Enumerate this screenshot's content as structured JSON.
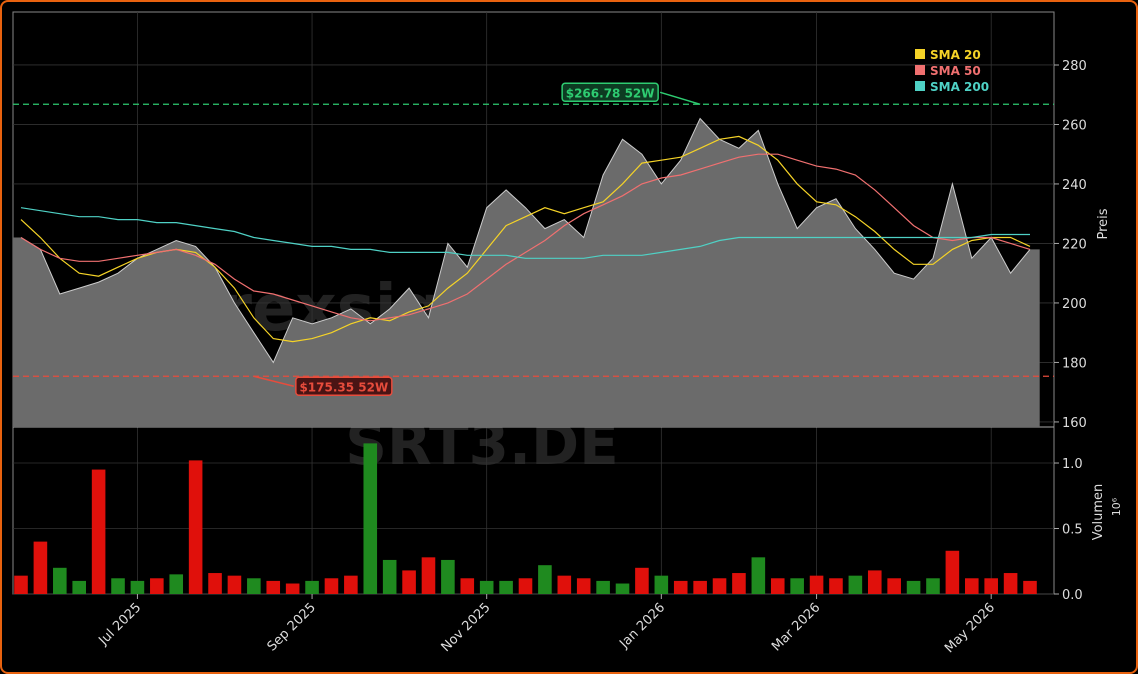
{
  "chart_data": {
    "type": "stock",
    "watermark": "forexsignale.trade",
    "symbol": "SRT3.DE",
    "y_label": "Preis",
    "y2_label": "Volumen",
    "y2_offset_label": "10⁶",
    "categories": [
      null,
      null,
      null,
      null,
      null,
      null,
      "Jul 2025",
      null,
      null,
      null,
      null,
      null,
      null,
      null,
      null,
      "Sep 2025",
      null,
      null,
      null,
      null,
      null,
      null,
      null,
      null,
      "Nov 2025",
      null,
      null,
      null,
      null,
      null,
      null,
      null,
      null,
      "Jan 2026",
      null,
      null,
      null,
      null,
      null,
      null,
      null,
      "Mar 2026",
      null,
      null,
      null,
      null,
      null,
      null,
      null,
      null,
      "May 2026",
      null,
      null
    ],
    "series": [
      {
        "name": "Close",
        "color": "#6b6b6b",
        "values": [
          222,
          218,
          203,
          205,
          207,
          210,
          215,
          218,
          221,
          219,
          212,
          200,
          190,
          180,
          195,
          193,
          195,
          198,
          193,
          198,
          205,
          195,
          220,
          212,
          232,
          238,
          232,
          225,
          228,
          222,
          243,
          255,
          250,
          240,
          248,
          262,
          255,
          252,
          258,
          240,
          225,
          232,
          235,
          225,
          218,
          210,
          208,
          215,
          240,
          215,
          222,
          210,
          218
        ]
      },
      {
        "name": "SMA 20",
        "color": "#f5d327",
        "values": [
          228,
          222,
          215,
          210,
          209,
          212,
          215,
          217,
          218,
          217,
          212,
          205,
          195,
          188,
          187,
          188,
          190,
          193,
          195,
          194,
          197,
          199,
          205,
          210,
          218,
          226,
          229,
          232,
          230,
          232,
          234,
          240,
          247,
          248,
          249,
          252,
          255,
          256,
          253,
          248,
          240,
          234,
          233,
          229,
          224,
          218,
          213,
          213,
          218,
          221,
          222,
          222,
          219
        ]
      },
      {
        "name": "SMA 50",
        "color": "#f07070",
        "values": [
          222,
          218,
          215,
          214,
          214,
          215,
          216,
          217,
          218,
          216,
          213,
          208,
          204,
          203,
          201,
          199,
          197,
          195,
          194,
          195,
          196,
          198,
          200,
          203,
          208,
          213,
          217,
          221,
          226,
          230,
          233,
          236,
          240,
          242,
          243,
          245,
          247,
          249,
          250,
          250,
          248,
          246,
          245,
          243,
          238,
          232,
          226,
          222,
          221,
          222,
          222,
          220,
          218
        ]
      },
      {
        "name": "SMA 200",
        "color": "#4fd1c5",
        "values": [
          232,
          231,
          230,
          229,
          229,
          228,
          228,
          227,
          227,
          226,
          225,
          224,
          222,
          221,
          220,
          219,
          219,
          218,
          218,
          217,
          217,
          217,
          217,
          216,
          216,
          216,
          215,
          215,
          215,
          215,
          216,
          216,
          216,
          217,
          218,
          219,
          221,
          222,
          222,
          222,
          222,
          222,
          222,
          222,
          222,
          222,
          222,
          222,
          222,
          222,
          223,
          223,
          223
        ]
      }
    ],
    "volume": {
      "values": [
        0.14,
        0.4,
        0.2,
        0.1,
        0.95,
        0.12,
        0.1,
        0.12,
        0.15,
        1.02,
        0.16,
        0.14,
        0.12,
        0.1,
        0.08,
        0.1,
        0.12,
        0.14,
        1.15,
        0.26,
        0.18,
        0.28,
        0.26,
        0.12,
        0.1,
        0.1,
        0.12,
        0.22,
        0.14,
        0.12,
        0.1,
        0.08,
        0.2,
        0.14,
        0.1,
        0.1,
        0.12,
        0.16,
        0.28,
        0.12,
        0.12,
        0.14,
        0.12,
        0.14,
        0.18,
        0.12,
        0.1,
        0.12,
        0.33,
        0.12,
        0.12,
        0.16,
        0.1
      ],
      "colors": [
        "#e0100b",
        "#e0100b",
        "#1f8a1f",
        "#1f8a1f",
        "#e0100b",
        "#1f8a1f",
        "#1f8a1f",
        "#e0100b",
        "#1f8a1f",
        "#e0100b",
        "#e0100b",
        "#e0100b",
        "#1f8a1f",
        "#e0100b",
        "#e0100b",
        "#1f8a1f",
        "#e0100b",
        "#e0100b",
        "#1f8a1f",
        "#1f8a1f",
        "#e0100b",
        "#e0100b",
        "#1f8a1f",
        "#e0100b",
        "#1f8a1f",
        "#1f8a1f",
        "#e0100b",
        "#1f8a1f",
        "#e0100b",
        "#e0100b",
        "#1f8a1f",
        "#1f8a1f",
        "#e0100b",
        "#1f8a1f",
        "#e0100b",
        "#e0100b",
        "#e0100b",
        "#e0100b",
        "#1f8a1f",
        "#e0100b",
        "#1f8a1f",
        "#e0100b",
        "#e0100b",
        "#1f8a1f",
        "#e0100b",
        "#e0100b",
        "#1f8a1f",
        "#1f8a1f",
        "#e0100b",
        "#e0100b",
        "#e0100b",
        "#e0100b",
        "#e0100b"
      ]
    },
    "ylim": [
      158.3,
      297.8
    ],
    "yticks": [
      160,
      180,
      200,
      220,
      240,
      260,
      280
    ],
    "y2lim": [
      0,
      1.275
    ],
    "y2ticks": [
      {
        "value": 0,
        "label": "0.0"
      },
      {
        "value": 0.5,
        "label": "0.5"
      },
      {
        "value": 1,
        "label": "1.0"
      }
    ],
    "annotations": [
      {
        "value": 266.78,
        "label": "$266.78 52W",
        "color": "#2ecc71",
        "index": 35
      },
      {
        "value": 175.35,
        "label": "$175.35 52W",
        "color": "#e74c3c",
        "index": 12
      }
    ],
    "grid": true,
    "legend": "upper right"
  }
}
